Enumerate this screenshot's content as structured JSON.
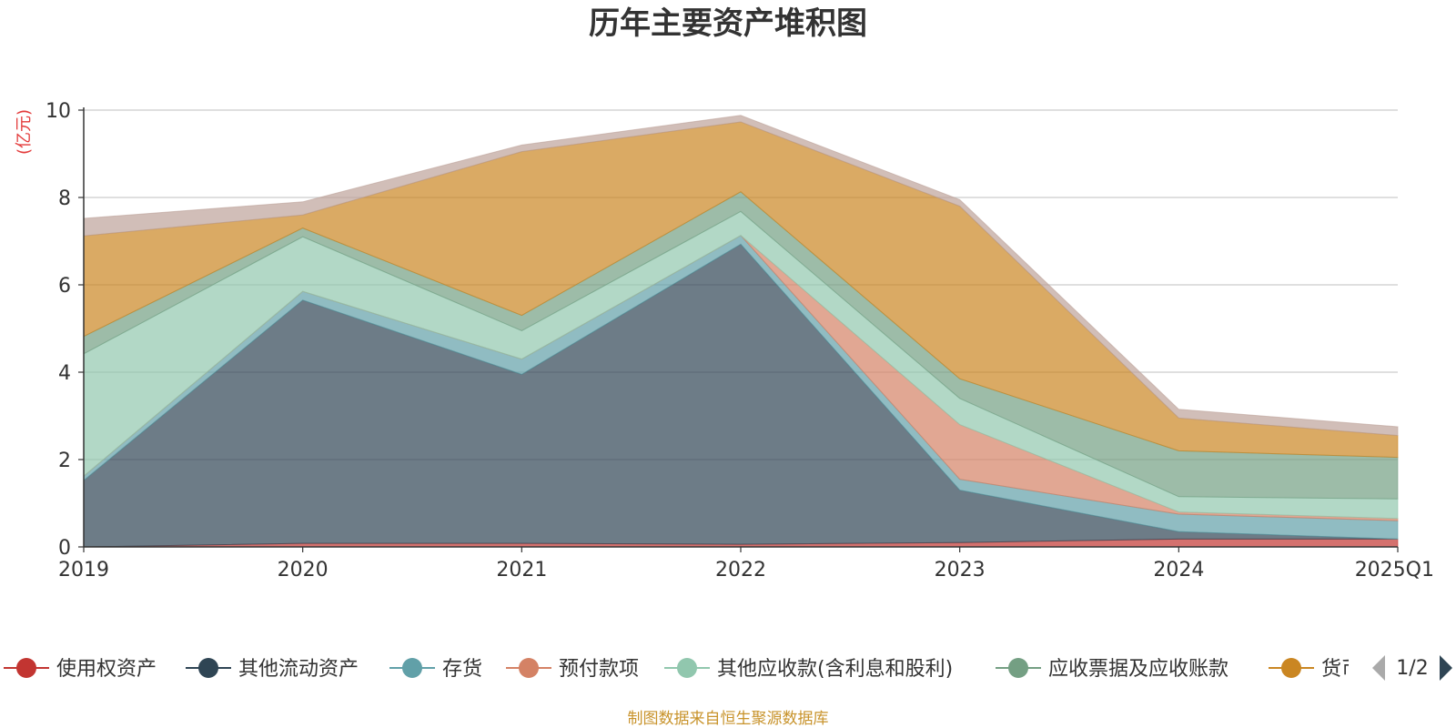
{
  "title": "历年主要资产堆积图",
  "yunit": "(亿元)",
  "source": "制图数据来自恒生聚源数据库",
  "pager": "1/2",
  "chart_data": {
    "type": "area",
    "stacked": true,
    "x": [
      "2019",
      "2020",
      "2021",
      "2022",
      "2023",
      "2024",
      "2025Q1"
    ],
    "ylim": [
      0,
      10
    ],
    "yticks": [
      0,
      2,
      4,
      6,
      8,
      10
    ],
    "grid": true,
    "legend_position": "bottom",
    "series": [
      {
        "name": "使用权资产",
        "color": "#c23531",
        "values": [
          0.0,
          0.08,
          0.08,
          0.06,
          0.1,
          0.18,
          0.18
        ]
      },
      {
        "name": "其他流动资产",
        "color": "#2f4554",
        "values": [
          1.52,
          5.57,
          3.87,
          6.87,
          1.2,
          0.17,
          0.0
        ]
      },
      {
        "name": "存货",
        "color": "#61a0a8",
        "values": [
          0.1,
          0.2,
          0.35,
          0.2,
          0.25,
          0.4,
          0.42
        ]
      },
      {
        "name": "预付款项",
        "color": "#d48265",
        "values": [
          0.0,
          0.0,
          0.0,
          0.0,
          1.25,
          0.05,
          0.05
        ]
      },
      {
        "name": "其他应收款(含利息和股利)",
        "color": "#91c7ae",
        "values": [
          2.8,
          1.25,
          0.65,
          0.55,
          0.6,
          0.35,
          0.45
        ]
      },
      {
        "name": "应收票据及应收账款",
        "color": "#749f83",
        "values": [
          0.4,
          0.2,
          0.35,
          0.45,
          0.45,
          1.05,
          0.95
        ]
      },
      {
        "name": "货币资金",
        "color": "#ca8622",
        "values": [
          2.3,
          0.3,
          3.75,
          1.6,
          3.95,
          0.75,
          0.5
        ]
      },
      {
        "name": "",
        "color": "#bda29a",
        "values": [
          0.4,
          0.3,
          0.15,
          0.15,
          0.15,
          0.2,
          0.2
        ]
      }
    ],
    "legend_visible": [
      "使用权资产",
      "其他流动资产",
      "存货",
      "预付款项",
      "其他应收款(含利息和股利)",
      "应收票据及应收账款",
      "货币资金"
    ]
  }
}
